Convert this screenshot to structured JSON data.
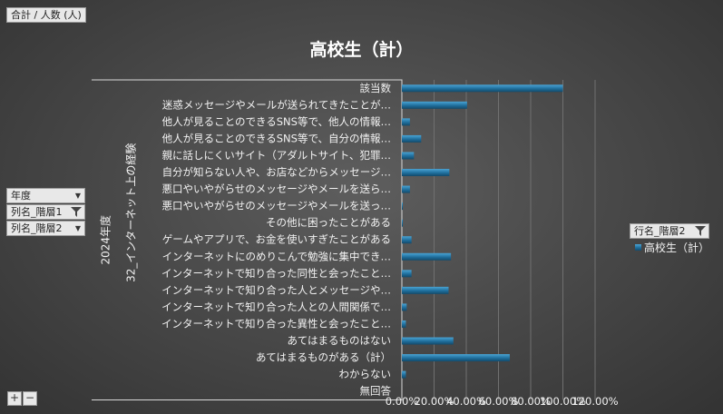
{
  "pivot": {
    "value_field": "合計 / 人数 (人)",
    "filters": [
      {
        "label": "年度",
        "icon": "dropdown-arrow-icon"
      },
      {
        "label": "列名_階層1",
        "icon": "filter-icon"
      },
      {
        "label": "列名_階層2",
        "icon": "dropdown-arrow-icon"
      }
    ],
    "row_field": "行名_階層2",
    "row_field_icon": "filter-icon",
    "expand_label": "+",
    "collapse_label": "−"
  },
  "chart_data": {
    "type": "bar",
    "orientation": "horizontal",
    "title": "高校生（計）",
    "group_labels": [
      "2024年度",
      "32_インターネット上の経験"
    ],
    "categories": [
      "該当数",
      "迷惑メッセージやメールが送られてきたことが…",
      "他人が見ることのできるSNS等で、他人の情報…",
      "他人が見ることのできるSNS等で、自分の情報…",
      "親に話しにくいサイト（アダルトサイト、犯罪…",
      "自分が知らない人や、お店などからメッセージ…",
      "悪口やいやがらせのメッセージやメールを送ら…",
      "悪口やいやがらせのメッセージやメールを送っ…",
      "その他に困ったことがある",
      "ゲームやアプリで、お金を使いすぎたことがある",
      "インターネットにのめりこんで勉強に集中でき…",
      "インターネットで知り合った同性と会ったこと…",
      "インターネットで知り合った人とメッセージや…",
      "インターネットで知り合った人との人間関係で…",
      "インターネットで知り合った異性と会ったこと…",
      "あてはまるものはない",
      "あてはまるものがある（計）",
      "わからない",
      "無回答"
    ],
    "series": [
      {
        "name": "高校生（計）",
        "values": [
          100,
          40.5,
          5,
          12,
          7.5,
          29.5,
          5,
          0.5,
          0.5,
          6,
          30.5,
          6,
          29,
          3,
          2.5,
          32,
          67,
          2.5,
          0
        ]
      }
    ],
    "xlim": [
      0,
      120
    ],
    "xticks": [
      "0.00%",
      "20.00%",
      "40.00%",
      "60.00%",
      "80.00%",
      "100.00%",
      "120.00%"
    ],
    "grid": true,
    "legend_position": "right",
    "colors": {
      "bar": "#1f6e9c",
      "bar_highlight": "#4aa3d3",
      "grid": "#707070",
      "axis": "#d9d9d9"
    }
  }
}
